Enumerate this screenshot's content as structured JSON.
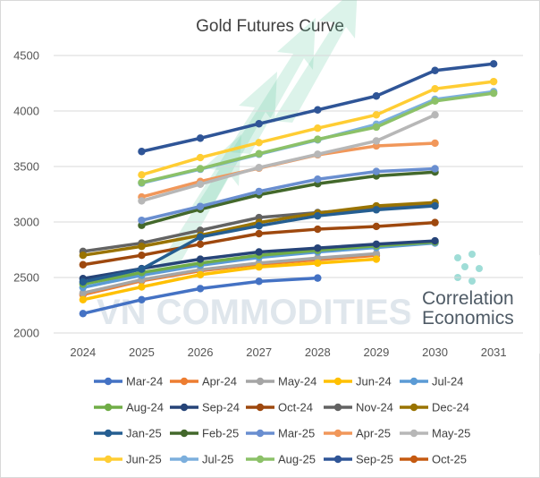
{
  "chart_data": {
    "type": "line",
    "title": "Gold Futures Curve",
    "xlabel": "",
    "ylabel": "",
    "x": [
      2024,
      2025,
      2026,
      2027,
      2028,
      2029,
      2030,
      2031
    ],
    "x_tick_labels": [
      "2024",
      "2025",
      "2026",
      "2027",
      "2028",
      "2029",
      "2030",
      "2031"
    ],
    "ylim": [
      2000,
      4500
    ],
    "y_ticks": [
      2000,
      2500,
      3000,
      3500,
      4000,
      4500
    ],
    "y_tick_labels": [
      "2000",
      "2500",
      "3000",
      "3500",
      "4000",
      "4500"
    ],
    "grid": "horizontal",
    "legend_position": "bottom",
    "series": [
      {
        "name": "Mar-24",
        "color": "#4472C4",
        "x": [
          2024,
          2025,
          2026,
          2027,
          2028
        ],
        "values": [
          2175,
          2300,
          2400,
          2465,
          2495
        ]
      },
      {
        "name": "Apr-24",
        "color": "#ED7D31",
        "x": [
          2024,
          2025,
          2026,
          2027,
          2028,
          2029
        ],
        "values": [
          2345,
          2470,
          2560,
          2620,
          2660,
          2700
        ]
      },
      {
        "name": "May-24",
        "color": "#A5A5A5",
        "x": [
          2024,
          2025,
          2026,
          2027,
          2028,
          2029
        ],
        "values": [
          2360,
          2480,
          2570,
          2630,
          2675,
          2715
        ]
      },
      {
        "name": "Jun-24",
        "color": "#FFC000",
        "x": [
          2024,
          2025,
          2026,
          2027,
          2028,
          2029
        ],
        "values": [
          2300,
          2415,
          2525,
          2595,
          2630,
          2665
        ]
      },
      {
        "name": "Jul-24",
        "color": "#5B9BD5",
        "x": [
          2024,
          2025,
          2026,
          2027,
          2028,
          2029,
          2030
        ],
        "values": [
          2410,
          2520,
          2610,
          2680,
          2730,
          2770,
          2810
        ]
      },
      {
        "name": "Aug-24",
        "color": "#70AD47",
        "x": [
          2024,
          2025,
          2026,
          2027,
          2028,
          2029,
          2030
        ],
        "values": [
          2440,
          2545,
          2630,
          2700,
          2745,
          2785,
          2820
        ]
      },
      {
        "name": "Sep-24",
        "color": "#264478",
        "x": [
          2024,
          2025,
          2026,
          2027,
          2028,
          2029,
          2030
        ],
        "values": [
          2490,
          2580,
          2665,
          2730,
          2765,
          2800,
          2830
        ]
      },
      {
        "name": "Oct-24",
        "color": "#9E480E",
        "x": [
          2024,
          2025,
          2026,
          2027,
          2028,
          2029,
          2030
        ],
        "values": [
          2615,
          2700,
          2800,
          2895,
          2935,
          2960,
          2995
        ]
      },
      {
        "name": "Nov-24",
        "color": "#636363",
        "x": [
          2024,
          2025,
          2026,
          2027,
          2028,
          2029,
          2030
        ],
        "values": [
          2735,
          2810,
          2925,
          3040,
          3085,
          3125,
          3165
        ]
      },
      {
        "name": "Dec-24",
        "color": "#997300",
        "x": [
          2024,
          2025,
          2026,
          2027,
          2028,
          2029,
          2030
        ],
        "values": [
          2700,
          2780,
          2880,
          2995,
          3080,
          3145,
          3175
        ]
      },
      {
        "name": "Jan-25",
        "color": "#255E91",
        "x": [
          2024,
          2025,
          2026,
          2027,
          2028,
          2029,
          2030
        ],
        "values": [
          2460,
          2575,
          2865,
          2965,
          3055,
          3110,
          3145
        ]
      },
      {
        "name": "Feb-25",
        "color": "#43682B",
        "x": [
          2025,
          2026,
          2027,
          2028,
          2029,
          2030
        ],
        "values": [
          2970,
          3115,
          3245,
          3345,
          3415,
          3450
        ]
      },
      {
        "name": "Mar-25",
        "color": "#698ED0",
        "x": [
          2025,
          2026,
          2027,
          2028,
          2029,
          2030
        ],
        "values": [
          3015,
          3140,
          3275,
          3385,
          3455,
          3480
        ]
      },
      {
        "name": "Apr-25",
        "color": "#F1975A",
        "x": [
          2025,
          2026,
          2027,
          2028,
          2029,
          2030
        ],
        "values": [
          3225,
          3365,
          3485,
          3605,
          3685,
          3710
        ]
      },
      {
        "name": "May-25",
        "color": "#B7B7B7",
        "x": [
          2025,
          2026,
          2027,
          2028,
          2029,
          2030
        ],
        "values": [
          3190,
          3340,
          3490,
          3610,
          3730,
          3965
        ]
      },
      {
        "name": "Jun-25",
        "color": "#FFCD33",
        "x": [
          2025,
          2026,
          2027,
          2028,
          2029,
          2030,
          2031
        ],
        "values": [
          3425,
          3580,
          3715,
          3845,
          3965,
          4200,
          4265
        ]
      },
      {
        "name": "Jul-25",
        "color": "#7CAFDD",
        "x": [
          2025,
          2026,
          2027,
          2028,
          2029,
          2030,
          2031
        ],
        "values": [
          3350,
          3475,
          3610,
          3740,
          3880,
          4105,
          4175
        ]
      },
      {
        "name": "Aug-25",
        "color": "#8CC168",
        "x": [
          2025,
          2026,
          2027,
          2028,
          2029,
          2030,
          2031
        ],
        "values": [
          3355,
          3480,
          3615,
          3745,
          3855,
          4090,
          4160
        ]
      },
      {
        "name": "Sep-25",
        "color": "#2F5597",
        "x": [
          2025,
          2026,
          2027,
          2028,
          2029,
          2030,
          2031
        ],
        "values": [
          3635,
          3755,
          3885,
          4010,
          4135,
          4365,
          4425
        ]
      },
      {
        "name": "Oct-25",
        "color": "#C55A11",
        "x": [],
        "values": []
      }
    ]
  },
  "watermark": {
    "left_text": "VN COMMODITIES",
    "right_line1": "Correlation",
    "right_line2": "Economics",
    "arrow_color": "#5fc7a0"
  }
}
